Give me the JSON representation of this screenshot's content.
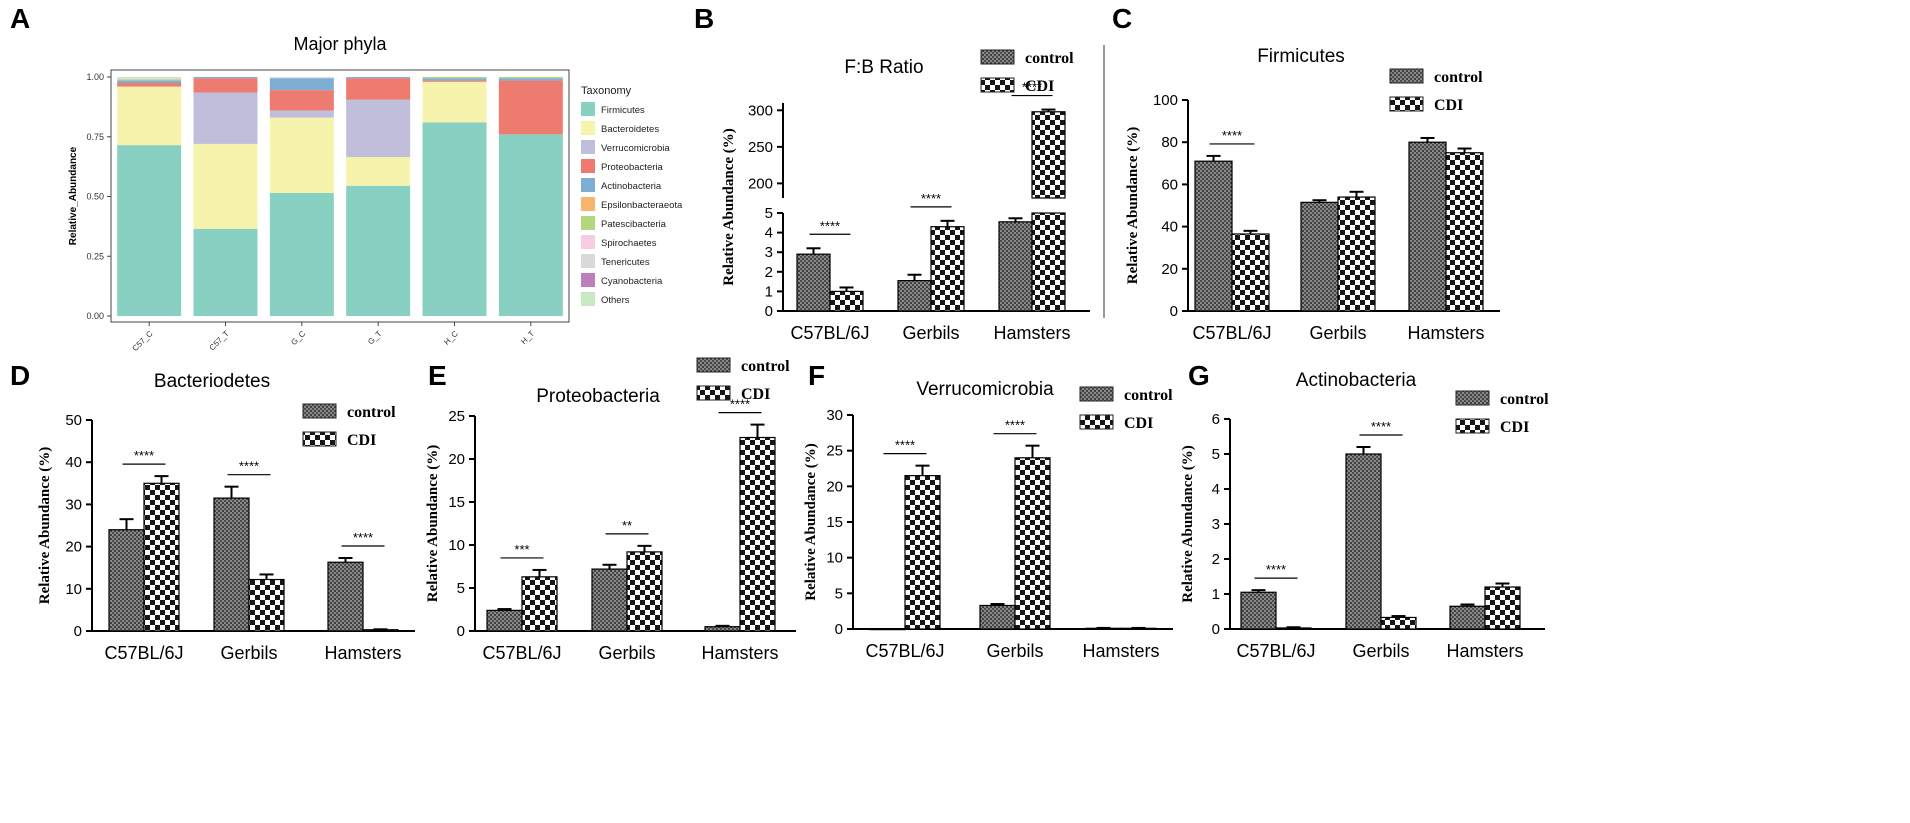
{
  "chart_data": [
    {
      "panel": "A",
      "type": "stacked_bar",
      "title": "Major phyla",
      "xlabel": "",
      "ylabel": "Relative_Abundance",
      "ylim": [
        0,
        1
      ],
      "yticks": [
        "0.00",
        "0.25",
        "0.50",
        "0.75",
        "1.00"
      ],
      "categories": [
        "C57_C",
        "C57_T",
        "G_C",
        "G_T",
        "H_C",
        "H_T"
      ],
      "legend_title": "Taxonomy",
      "series": [
        {
          "name": "Firmicutes",
          "color": "#88d1c2",
          "values": [
            0.715,
            0.365,
            0.515,
            0.545,
            0.81,
            0.76
          ]
        },
        {
          "name": "Bacteroidetes",
          "color": "#f6f3ac",
          "values": [
            0.245,
            0.355,
            0.315,
            0.12,
            0.17,
            0.0
          ]
        },
        {
          "name": "Verrucomicrobia",
          "color": "#c1bedc",
          "values": [
            0.0,
            0.215,
            0.03,
            0.24,
            0.0,
            0.0
          ]
        },
        {
          "name": "Proteobacteria",
          "color": "#ed7b70",
          "values": [
            0.015,
            0.06,
            0.085,
            0.09,
            0.005,
            0.225
          ]
        },
        {
          "name": "Actinobacteria",
          "color": "#7eaed3",
          "values": [
            0.01,
            0.005,
            0.05,
            0.005,
            0.01,
            0.01
          ]
        },
        {
          "name": "Epsilonbacteraeota",
          "color": "#f7b46c",
          "values": [
            0.0,
            0.0,
            0.0,
            0.0,
            0.0,
            0.0
          ]
        },
        {
          "name": "Patescibacteria",
          "color": "#b2d77c",
          "values": [
            0.005,
            0.0,
            0.0,
            0.0,
            0.005,
            0.005
          ]
        },
        {
          "name": "Spirochaetes",
          "color": "#f7cde2",
          "values": [
            0.0,
            0.0,
            0.0,
            0.0,
            0.0,
            0.0
          ]
        },
        {
          "name": "Tenericutes",
          "color": "#d9d9d9",
          "values": [
            0.005,
            0.0,
            0.005,
            0.0,
            0.0,
            0.0
          ]
        },
        {
          "name": "Cyanobacteria",
          "color": "#bd80bd",
          "values": [
            0.0,
            0.0,
            0.0,
            0.0,
            0.0,
            0.0
          ]
        },
        {
          "name": "Others",
          "color": "#c9e8c4",
          "values": [
            0.005,
            0.0,
            0.0,
            0.0,
            0.0,
            0.0
          ]
        }
      ]
    },
    {
      "panel": "B",
      "type": "bar",
      "title": "F:B Ratio",
      "ylabel": "Relative Abundance (%)",
      "categories": [
        "C57BL/6J",
        "Gerbils",
        "Hamsters"
      ],
      "axis_break": {
        "lower": [
          0,
          5
        ],
        "upper": [
          180,
          310
        ]
      },
      "yticks_lower": [
        0,
        1,
        2,
        3,
        4,
        5
      ],
      "yticks_upper": [
        200,
        250,
        300
      ],
      "series": [
        {
          "name": "control",
          "values": [
            2.9,
            1.55,
            4.55
          ],
          "errors": [
            0.3,
            0.3,
            0.18
          ]
        },
        {
          "name": "CDI",
          "values": [
            1.0,
            4.3,
            298
          ],
          "errors": [
            0.2,
            0.3,
            3
          ]
        }
      ],
      "significance": [
        "****",
        "****",
        "****"
      ]
    },
    {
      "panel": "C",
      "type": "bar",
      "title": "Firmicutes",
      "ylabel": "Relative Abundance (%)",
      "categories": [
        "C57BL/6J",
        "Gerbils",
        "Hamsters"
      ],
      "ylim": [
        0,
        100
      ],
      "yticks": [
        0,
        20,
        40,
        60,
        80,
        100
      ],
      "series": [
        {
          "name": "control",
          "values": [
            71,
            51.5,
            80
          ],
          "errors": [
            2.5,
            1,
            2
          ]
        },
        {
          "name": "CDI",
          "values": [
            36.5,
            54,
            75
          ],
          "errors": [
            1.5,
            2.5,
            2
          ]
        }
      ],
      "significance": [
        "****",
        "",
        ""
      ]
    },
    {
      "panel": "D",
      "type": "bar",
      "title": "Bacteriodetes",
      "ylabel": "Relative Abundance (%)",
      "categories": [
        "C57BL/6J",
        "Gerbils",
        "Hamsters"
      ],
      "ylim": [
        0,
        50
      ],
      "yticks": [
        0,
        10,
        20,
        30,
        40,
        50
      ],
      "series": [
        {
          "name": "control",
          "values": [
            24,
            31.5,
            16.3
          ],
          "errors": [
            2.5,
            2.7,
            1
          ]
        },
        {
          "name": "CDI",
          "values": [
            35,
            12.2,
            0.3
          ],
          "errors": [
            1.7,
            1.2,
            0.1
          ]
        }
      ],
      "significance": [
        "****",
        "****",
        "****"
      ]
    },
    {
      "panel": "E",
      "type": "bar",
      "title": "Proteobacteria",
      "ylabel": "Relative Abundance (%)",
      "categories": [
        "C57BL/6J",
        "Gerbils",
        "Hamsters"
      ],
      "ylim": [
        0,
        25
      ],
      "yticks": [
        0,
        5,
        10,
        15,
        20,
        25
      ],
      "series": [
        {
          "name": "control",
          "values": [
            2.4,
            7.2,
            0.5
          ],
          "errors": [
            0.15,
            0.5,
            0.1
          ]
        },
        {
          "name": "CDI",
          "values": [
            6.3,
            9.2,
            22.5
          ],
          "errors": [
            0.8,
            0.7,
            1.5
          ]
        }
      ],
      "significance": [
        "***",
        "**",
        "****"
      ]
    },
    {
      "panel": "F",
      "type": "bar",
      "title": "Verrucomicrobia",
      "ylabel": "Relative Abundance (%)",
      "categories": [
        "C57BL/6J",
        "Gerbils",
        "Hamsters"
      ],
      "ylim": [
        0,
        30
      ],
      "yticks": [
        0,
        5,
        10,
        15,
        20,
        25,
        30
      ],
      "series": [
        {
          "name": "control",
          "values": [
            0.05,
            3.3,
            0.1
          ],
          "errors": [
            0,
            0.2,
            0.05
          ]
        },
        {
          "name": "CDI",
          "values": [
            21.5,
            24,
            0.1
          ],
          "errors": [
            1.4,
            1.7,
            0.05
          ]
        }
      ],
      "significance": [
        "****",
        "****",
        ""
      ]
    },
    {
      "panel": "G",
      "type": "bar",
      "title": "Actinobacteria",
      "ylabel": "Relative Abundance (%)",
      "categories": [
        "C57BL/6J",
        "Gerbils",
        "Hamsters"
      ],
      "ylim": [
        0,
        6
      ],
      "yticks": [
        0,
        1,
        2,
        3,
        4,
        5,
        6
      ],
      "series": [
        {
          "name": "control",
          "values": [
            1.05,
            5.0,
            0.65
          ],
          "errors": [
            0.06,
            0.2,
            0.05
          ]
        },
        {
          "name": "CDI",
          "values": [
            0.03,
            0.33,
            1.2
          ],
          "errors": [
            0.02,
            0.04,
            0.1
          ]
        }
      ],
      "significance": [
        "****",
        "****",
        ""
      ]
    }
  ]
}
